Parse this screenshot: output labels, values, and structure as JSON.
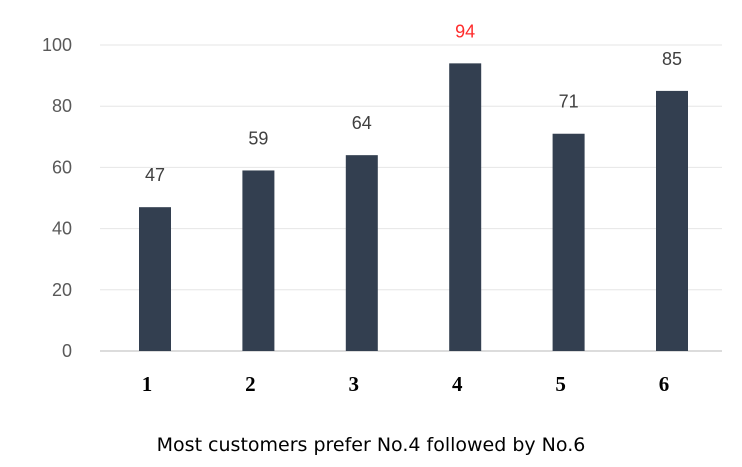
{
  "chart_data": {
    "type": "bar",
    "categories": [
      "1",
      "2",
      "3",
      "4",
      "5",
      "6"
    ],
    "values": [
      47,
      59,
      64,
      94,
      71,
      85
    ],
    "highlight_category": "4",
    "ylim": [
      0,
      100
    ],
    "yticks": [
      0,
      20,
      40,
      60,
      80,
      100
    ],
    "grid": true,
    "data_labels": true,
    "bar_color": "#333f50",
    "highlight_label_color": "#ff2b2b",
    "caption": "Most customers prefer No.4 followed by No.6"
  }
}
